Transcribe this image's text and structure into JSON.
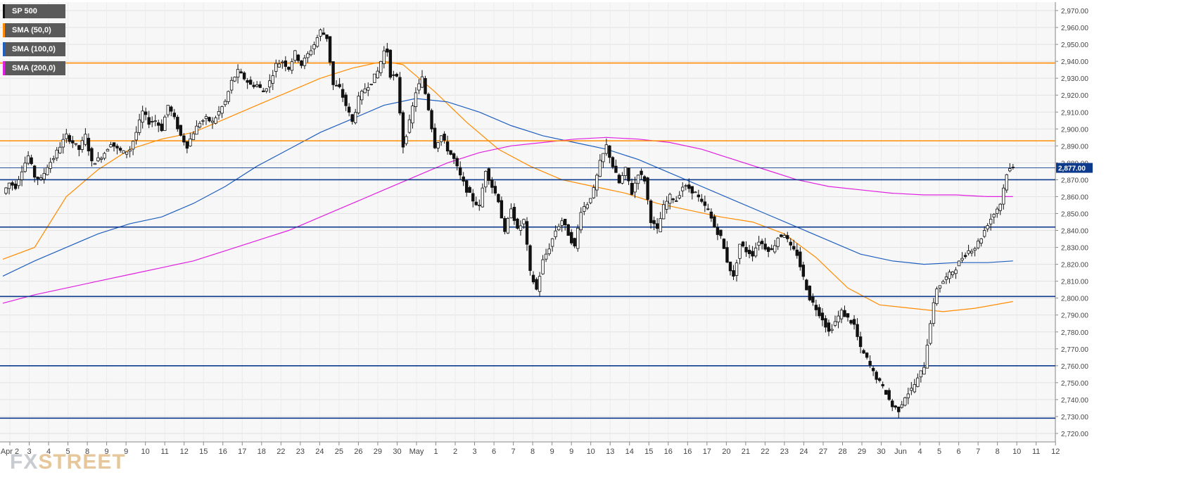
{
  "watermark": {
    "part1": "FX",
    "part2": "STREET"
  },
  "legend": [
    {
      "label": "SP 500",
      "color": "#111111"
    },
    {
      "label": "SMA (50,0)",
      "color": "#ff8c00"
    },
    {
      "label": "SMA (100,0)",
      "color": "#1f5fbf"
    },
    {
      "label": "SMA (200,0)",
      "color": "#e020e0"
    }
  ],
  "chart_data": {
    "type": "candlestick",
    "title": "",
    "ylim": [
      2715,
      2975
    ],
    "y_ticks": [
      "2,720.00",
      "2,730.00",
      "2,740.00",
      "2,750.00",
      "2,760.00",
      "2,770.00",
      "2,780.00",
      "2,790.00",
      "2,800.00",
      "2,810.00",
      "2,820.00",
      "2,830.00",
      "2,840.00",
      "2,850.00",
      "2,860.00",
      "2,870.00",
      "2,880.00",
      "2,890.00",
      "2,900.00",
      "2,910.00",
      "2,920.00",
      "2,930.00",
      "2,940.00",
      "2,950.00",
      "2,960.00",
      "2,970.00"
    ],
    "x_ticks": [
      "Apr 2",
      "3",
      "4",
      "5",
      "8",
      "9",
      "9",
      "10",
      "11",
      "12",
      "15",
      "16",
      "17",
      "18",
      "22",
      "23",
      "24",
      "25",
      "26",
      "29",
      "30",
      "May",
      "1",
      "2",
      "3",
      "6",
      "7",
      "8",
      "9",
      "9",
      "10",
      "13",
      "14",
      "15",
      "16",
      "16",
      "17",
      "20",
      "21",
      "22",
      "23",
      "24",
      "27",
      "28",
      "29",
      "30",
      "Jun",
      "4",
      "5",
      "6",
      "7",
      "8",
      "10",
      "11",
      "12"
    ],
    "last_price": 2877.0,
    "last_price_label": "2,877.00",
    "grid": true,
    "horizontal_levels": [
      {
        "value": 2939,
        "color": "#ff8c00"
      },
      {
        "value": 2893,
        "color": "#ff8c00"
      },
      {
        "value": 2870,
        "color": "#0d3a8c"
      },
      {
        "value": 2842,
        "color": "#0d3a8c"
      },
      {
        "value": 2801,
        "color": "#0d3a8c"
      },
      {
        "value": 2760,
        "color": "#0d3a8c"
      },
      {
        "value": 2729,
        "color": "#0d3a8c"
      }
    ],
    "price_path": [
      [
        0,
        2862
      ],
      [
        2,
        2868
      ],
      [
        4,
        2866
      ],
      [
        6,
        2876
      ],
      [
        8,
        2884
      ],
      [
        10,
        2872
      ],
      [
        12,
        2870
      ],
      [
        14,
        2878
      ],
      [
        16,
        2883
      ],
      [
        18,
        2890
      ],
      [
        20,
        2896
      ],
      [
        22,
        2892
      ],
      [
        24,
        2888
      ],
      [
        26,
        2896
      ],
      [
        28,
        2880
      ],
      [
        30,
        2882
      ],
      [
        32,
        2886
      ],
      [
        34,
        2892
      ],
      [
        36,
        2888
      ],
      [
        38,
        2886
      ],
      [
        40,
        2888
      ],
      [
        42,
        2898
      ],
      [
        44,
        2910
      ],
      [
        46,
        2904
      ],
      [
        48,
        2905
      ],
      [
        50,
        2900
      ],
      [
        52,
        2914
      ],
      [
        54,
        2906
      ],
      [
        56,
        2896
      ],
      [
        58,
        2890
      ],
      [
        60,
        2898
      ],
      [
        62,
        2904
      ],
      [
        64,
        2906
      ],
      [
        66,
        2904
      ],
      [
        68,
        2910
      ],
      [
        70,
        2916
      ],
      [
        72,
        2928
      ],
      [
        74,
        2934
      ],
      [
        76,
        2930
      ],
      [
        78,
        2926
      ],
      [
        80,
        2926
      ],
      [
        82,
        2922
      ],
      [
        84,
        2928
      ],
      [
        86,
        2938
      ],
      [
        88,
        2940
      ],
      [
        90,
        2936
      ],
      [
        92,
        2945
      ],
      [
        94,
        2938
      ],
      [
        96,
        2944
      ],
      [
        98,
        2950
      ],
      [
        100,
        2958
      ],
      [
        102,
        2954
      ],
      [
        104,
        2926
      ],
      [
        106,
        2924
      ],
      [
        108,
        2914
      ],
      [
        110,
        2904
      ],
      [
        112,
        2918
      ],
      [
        114,
        2924
      ],
      [
        116,
        2928
      ],
      [
        118,
        2934
      ],
      [
        120,
        2946
      ],
      [
        121,
        2946
      ],
      [
        122,
        2932
      ],
      [
        124,
        2930
      ],
      [
        126,
        2890
      ],
      [
        128,
        2904
      ],
      [
        130,
        2922
      ],
      [
        132,
        2930
      ],
      [
        134,
        2912
      ],
      [
        136,
        2890
      ],
      [
        138,
        2896
      ],
      [
        140,
        2888
      ],
      [
        142,
        2882
      ],
      [
        144,
        2872
      ],
      [
        146,
        2864
      ],
      [
        148,
        2858
      ],
      [
        150,
        2854
      ],
      [
        152,
        2876
      ],
      [
        154,
        2866
      ],
      [
        156,
        2858
      ],
      [
        158,
        2838
      ],
      [
        160,
        2854
      ],
      [
        162,
        2840
      ],
      [
        164,
        2846
      ],
      [
        166,
        2815
      ],
      [
        168,
        2805
      ],
      [
        170,
        2822
      ],
      [
        172,
        2830
      ],
      [
        174,
        2840
      ],
      [
        176,
        2846
      ],
      [
        178,
        2838
      ],
      [
        180,
        2830
      ],
      [
        182,
        2852
      ],
      [
        184,
        2856
      ],
      [
        186,
        2864
      ],
      [
        188,
        2880
      ],
      [
        190,
        2890
      ],
      [
        192,
        2878
      ],
      [
        194,
        2868
      ],
      [
        196,
        2876
      ],
      [
        198,
        2862
      ],
      [
        200,
        2874
      ],
      [
        202,
        2870
      ],
      [
        204,
        2846
      ],
      [
        206,
        2840
      ],
      [
        208,
        2854
      ],
      [
        210,
        2860
      ],
      [
        212,
        2858
      ],
      [
        214,
        2866
      ],
      [
        216,
        2865
      ],
      [
        218,
        2862
      ],
      [
        220,
        2856
      ],
      [
        222,
        2852
      ],
      [
        224,
        2842
      ],
      [
        226,
        2836
      ],
      [
        228,
        2822
      ],
      [
        230,
        2812
      ],
      [
        232,
        2832
      ],
      [
        234,
        2828
      ],
      [
        236,
        2826
      ],
      [
        238,
        2834
      ],
      [
        240,
        2830
      ],
      [
        242,
        2828
      ],
      [
        244,
        2836
      ],
      [
        246,
        2838
      ],
      [
        248,
        2830
      ],
      [
        250,
        2826
      ],
      [
        252,
        2812
      ],
      [
        254,
        2800
      ],
      [
        256,
        2794
      ],
      [
        258,
        2788
      ],
      [
        260,
        2780
      ],
      [
        262,
        2786
      ],
      [
        264,
        2792
      ],
      [
        266,
        2788
      ],
      [
        268,
        2784
      ],
      [
        270,
        2770
      ],
      [
        272,
        2764
      ],
      [
        274,
        2756
      ],
      [
        276,
        2750
      ],
      [
        278,
        2744
      ],
      [
        280,
        2736
      ],
      [
        282,
        2734
      ],
      [
        284,
        2742
      ],
      [
        286,
        2746
      ],
      [
        288,
        2752
      ],
      [
        290,
        2760
      ],
      [
        292,
        2786
      ],
      [
        294,
        2806
      ],
      [
        296,
        2810
      ],
      [
        298,
        2814
      ],
      [
        300,
        2818
      ],
      [
        302,
        2824
      ],
      [
        304,
        2828
      ],
      [
        306,
        2830
      ],
      [
        308,
        2836
      ],
      [
        310,
        2844
      ],
      [
        312,
        2850
      ],
      [
        314,
        2856
      ],
      [
        316,
        2874
      ],
      [
        317,
        2876
      ],
      [
        318,
        2877
      ]
    ],
    "sma50": [
      [
        0,
        2823
      ],
      [
        10,
        2830
      ],
      [
        20,
        2860
      ],
      [
        30,
        2876
      ],
      [
        40,
        2888
      ],
      [
        50,
        2894
      ],
      [
        60,
        2898
      ],
      [
        70,
        2906
      ],
      [
        80,
        2914
      ],
      [
        90,
        2922
      ],
      [
        100,
        2930
      ],
      [
        110,
        2936
      ],
      [
        120,
        2940
      ],
      [
        126,
        2938
      ],
      [
        136,
        2922
      ],
      [
        146,
        2904
      ],
      [
        156,
        2888
      ],
      [
        166,
        2878
      ],
      [
        176,
        2870
      ],
      [
        186,
        2866
      ],
      [
        196,
        2862
      ],
      [
        206,
        2856
      ],
      [
        216,
        2852
      ],
      [
        226,
        2848
      ],
      [
        236,
        2845
      ],
      [
        246,
        2838
      ],
      [
        256,
        2824
      ],
      [
        266,
        2806
      ],
      [
        276,
        2796
      ],
      [
        286,
        2794
      ],
      [
        296,
        2792
      ],
      [
        306,
        2794
      ],
      [
        318,
        2798
      ]
    ],
    "sma100": [
      [
        0,
        2813
      ],
      [
        10,
        2822
      ],
      [
        20,
        2830
      ],
      [
        30,
        2838
      ],
      [
        40,
        2844
      ],
      [
        50,
        2848
      ],
      [
        60,
        2856
      ],
      [
        70,
        2866
      ],
      [
        80,
        2878
      ],
      [
        90,
        2888
      ],
      [
        100,
        2898
      ],
      [
        110,
        2906
      ],
      [
        120,
        2914
      ],
      [
        130,
        2918
      ],
      [
        140,
        2916
      ],
      [
        150,
        2910
      ],
      [
        160,
        2902
      ],
      [
        170,
        2896
      ],
      [
        180,
        2892
      ],
      [
        190,
        2888
      ],
      [
        200,
        2882
      ],
      [
        210,
        2874
      ],
      [
        220,
        2866
      ],
      [
        230,
        2858
      ],
      [
        240,
        2850
      ],
      [
        250,
        2842
      ],
      [
        260,
        2834
      ],
      [
        270,
        2826
      ],
      [
        280,
        2822
      ],
      [
        290,
        2820
      ],
      [
        300,
        2821
      ],
      [
        310,
        2821
      ],
      [
        318,
        2822
      ]
    ],
    "sma200": [
      [
        0,
        2797
      ],
      [
        10,
        2802
      ],
      [
        20,
        2806
      ],
      [
        30,
        2810
      ],
      [
        40,
        2814
      ],
      [
        50,
        2818
      ],
      [
        60,
        2822
      ],
      [
        70,
        2828
      ],
      [
        80,
        2834
      ],
      [
        90,
        2840
      ],
      [
        100,
        2848
      ],
      [
        110,
        2856
      ],
      [
        120,
        2864
      ],
      [
        130,
        2872
      ],
      [
        140,
        2880
      ],
      [
        150,
        2886
      ],
      [
        160,
        2890
      ],
      [
        170,
        2892
      ],
      [
        180,
        2894
      ],
      [
        190,
        2895
      ],
      [
        200,
        2894
      ],
      [
        210,
        2892
      ],
      [
        220,
        2888
      ],
      [
        230,
        2882
      ],
      [
        240,
        2876
      ],
      [
        250,
        2870
      ],
      [
        260,
        2866
      ],
      [
        270,
        2864
      ],
      [
        280,
        2862
      ],
      [
        290,
        2861
      ],
      [
        300,
        2861
      ],
      [
        310,
        2860
      ],
      [
        318,
        2860
      ]
    ]
  }
}
